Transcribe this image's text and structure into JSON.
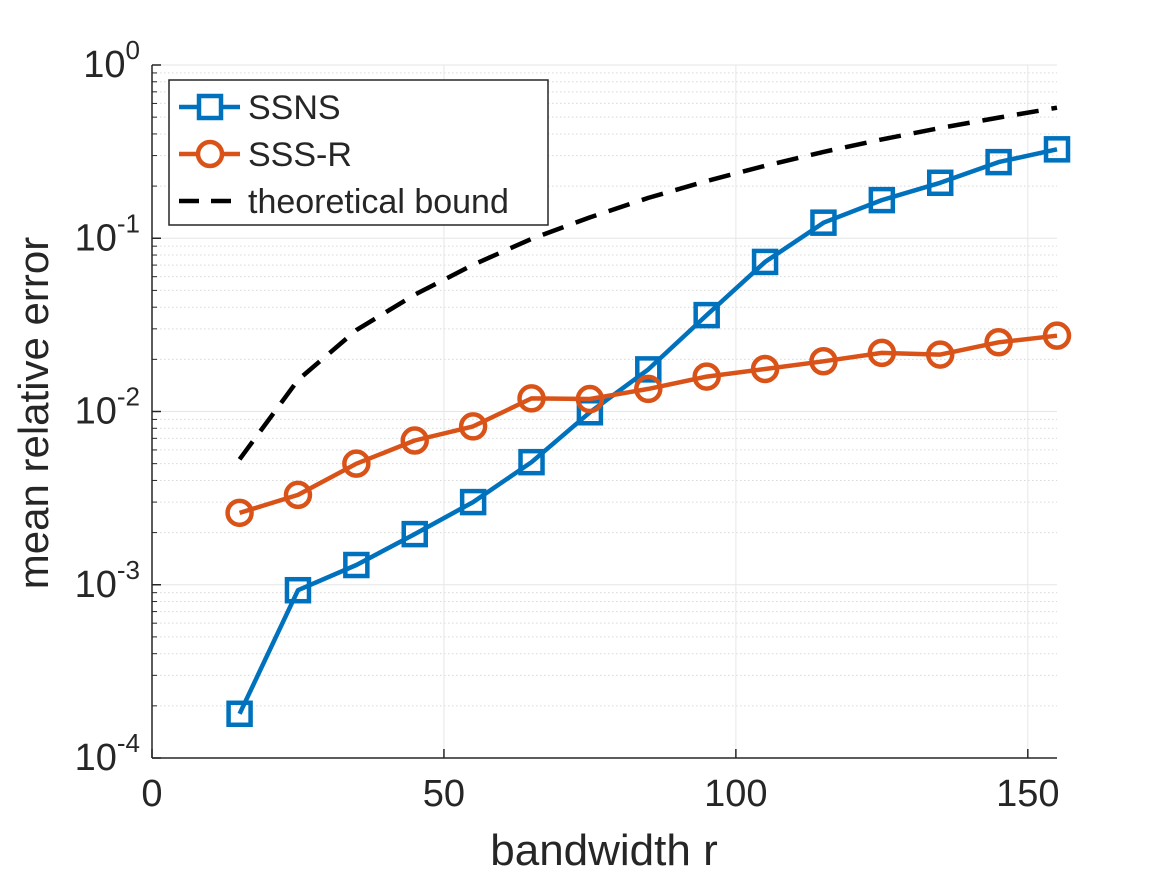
{
  "chart_data": {
    "type": "line",
    "title": "",
    "xlabel": "bandwidth r",
    "ylabel": "mean relative error",
    "xlim": [
      0,
      155
    ],
    "ylim": [
      0.0001,
      1
    ],
    "yscale": "log",
    "grid": true,
    "x_ticks": [
      {
        "value": 0,
        "label": "0"
      },
      {
        "value": 50,
        "label": "50"
      },
      {
        "value": 100,
        "label": "100"
      },
      {
        "value": 150,
        "label": "150"
      }
    ],
    "y_ticks": [
      {
        "value": 0.0001,
        "base": "10",
        "exp": "-4"
      },
      {
        "value": 0.001,
        "base": "10",
        "exp": "-3"
      },
      {
        "value": 0.01,
        "base": "10",
        "exp": "-2"
      },
      {
        "value": 0.1,
        "base": "10",
        "exp": "-1"
      },
      {
        "value": 1,
        "base": "10",
        "exp": "0"
      }
    ],
    "legend_position": "top-left",
    "series": [
      {
        "name": "SSNS",
        "color": "#0072BD",
        "style": "solid",
        "marker": "square",
        "x": [
          15,
          25,
          35,
          45,
          55,
          65,
          75,
          85,
          95,
          105,
          115,
          125,
          135,
          145,
          155
        ],
        "y": [
          0.00018,
          0.00093,
          0.0013,
          0.00196,
          0.003,
          0.0051,
          0.0099,
          0.0175,
          0.036,
          0.073,
          0.123,
          0.166,
          0.209,
          0.275,
          0.326
        ]
      },
      {
        "name": "SSS-R",
        "color": "#D95319",
        "style": "solid",
        "marker": "circle",
        "x": [
          15,
          25,
          35,
          45,
          55,
          65,
          75,
          85,
          95,
          105,
          115,
          125,
          135,
          145,
          155
        ],
        "y": [
          0.0026,
          0.0033,
          0.005,
          0.0068,
          0.0082,
          0.0119,
          0.0118,
          0.0135,
          0.0159,
          0.0176,
          0.0195,
          0.0218,
          0.0213,
          0.0251,
          0.0274
        ]
      },
      {
        "name": "theoretical bound",
        "color": "#000000",
        "style": "dashed",
        "marker": "none",
        "x": [
          15,
          25,
          35,
          45,
          55,
          65,
          75,
          85,
          95,
          105,
          115,
          125,
          135,
          145,
          155
        ],
        "y": [
          0.0053,
          0.0152,
          0.0295,
          0.0472,
          0.0703,
          0.0991,
          0.132,
          0.171,
          0.214,
          0.262,
          0.315,
          0.372,
          0.433,
          0.497,
          0.567
        ]
      }
    ]
  }
}
